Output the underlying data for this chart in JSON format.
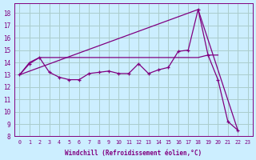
{
  "xlabel": "Windchill (Refroidissement éolien,°C)",
  "xlim": [
    -0.5,
    23.5
  ],
  "ylim": [
    8,
    18.8
  ],
  "yticks": [
    8,
    9,
    10,
    11,
    12,
    13,
    14,
    15,
    16,
    17,
    18
  ],
  "xticks": [
    0,
    1,
    2,
    3,
    4,
    5,
    6,
    7,
    8,
    9,
    10,
    11,
    12,
    13,
    14,
    15,
    16,
    17,
    18,
    19,
    20,
    21,
    22,
    23
  ],
  "bg_color": "#cceeff",
  "line_color": "#800080",
  "grid_color": "#aacccc",
  "line1_x": [
    0,
    1,
    2,
    3,
    4,
    5,
    6,
    7,
    8,
    9,
    10,
    11,
    12,
    13,
    14,
    15,
    16,
    17,
    18,
    19,
    20,
    21,
    22
  ],
  "line1_y": [
    13.0,
    13.9,
    14.4,
    13.2,
    12.8,
    12.6,
    12.6,
    13.1,
    13.2,
    13.3,
    13.1,
    13.1,
    13.9,
    13.1,
    13.4,
    13.6,
    14.9,
    15.0,
    18.3,
    14.6,
    12.6,
    9.2,
    8.5
  ],
  "line2_x": [
    0,
    1,
    2,
    3,
    4,
    5,
    6,
    7,
    8,
    9,
    10,
    11,
    12,
    13,
    14,
    15,
    16,
    17,
    18,
    19,
    20
  ],
  "line2_y": [
    13.0,
    14.0,
    14.4,
    14.4,
    14.4,
    14.4,
    14.4,
    14.4,
    14.4,
    14.4,
    14.4,
    14.4,
    14.4,
    14.4,
    14.4,
    14.4,
    14.4,
    14.4,
    14.4,
    14.6,
    14.6
  ],
  "line3_x": [
    0,
    18,
    22
  ],
  "line3_y": [
    13.0,
    18.3,
    8.5
  ]
}
